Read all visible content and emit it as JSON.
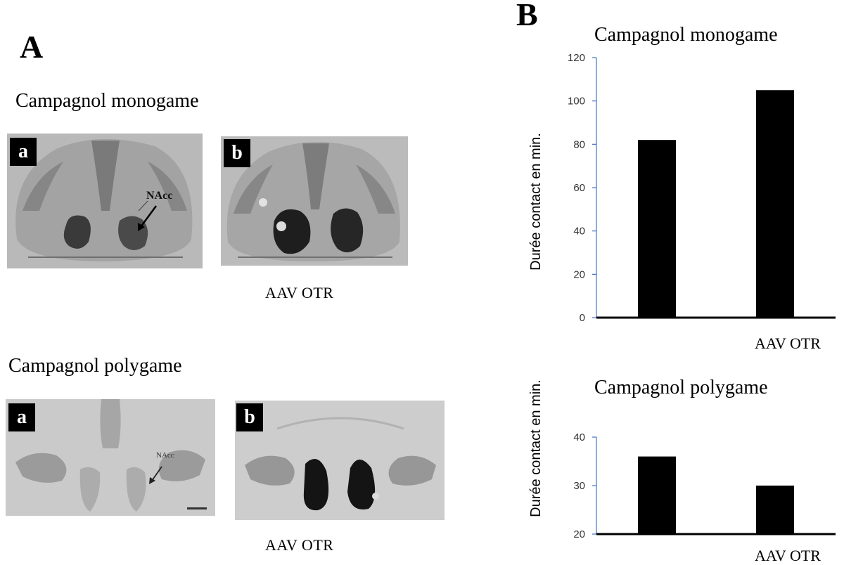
{
  "panel_a": {
    "letter": "A",
    "monogame": {
      "title": "Campagnol monogame",
      "badge_a": "a",
      "badge_b": "b",
      "nacc_label": "NAcc",
      "caption": "AAV  OTR"
    },
    "polygame": {
      "title": "Campagnol polygame",
      "badge_a": "a",
      "badge_b": "b",
      "nacc_label": "NAcc",
      "caption": "AAV  OTR"
    }
  },
  "panel_b": {
    "letter": "B"
  },
  "chart_data": [
    {
      "type": "bar",
      "title": "Campagnol monogame",
      "ylabel": "Durée contact en min.",
      "categories": [
        "",
        "AAV  OTR"
      ],
      "values": [
        82,
        105
      ],
      "ylim": [
        0,
        120
      ],
      "yticks": [
        0,
        20,
        40,
        60,
        80,
        100,
        120
      ],
      "grid": false,
      "bar_color": "#000000",
      "axis_color": "#4472c4"
    },
    {
      "type": "bar",
      "title": "Campagnol polygame",
      "ylabel": "Durée contact en min.",
      "categories": [
        "",
        "AAV  OTR"
      ],
      "values": [
        36,
        30
      ],
      "ylim": [
        20,
        40
      ],
      "yticks": [
        20,
        30,
        40
      ],
      "grid": false,
      "bar_color": "#000000",
      "axis_color": "#4472c4"
    }
  ]
}
